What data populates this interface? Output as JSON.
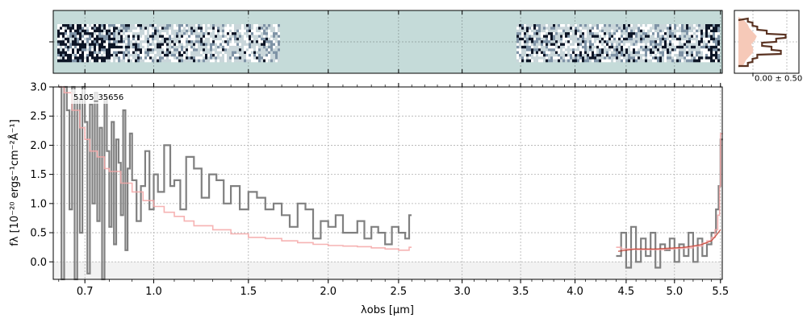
{
  "chart_data": {
    "type": "line",
    "object_label": "5105_35656",
    "xlabel": "λobs [μm]",
    "ylabel": "fλ [10⁻²⁰ ergs⁻¹cm⁻²Å⁻¹]",
    "x_scale": "reciprocal",
    "xlim": [
      0.58,
      5.52
    ],
    "ylim": [
      -0.3,
      3.0
    ],
    "x_tick_labels": [
      "0.7",
      "1.0",
      "1.5",
      "2.0",
      "2.5",
      "3.0",
      "3.5",
      "4.0",
      "4.5",
      "5.0",
      "5.5"
    ],
    "y_tick_labels": [
      "0.0",
      "0.5",
      "1.0",
      "1.5",
      "2.0",
      "2.5",
      "3.0"
    ],
    "grid": true,
    "inset_label": "0.00 ± 0.50",
    "colors": {
      "flux": "#808080",
      "error": "#f4a6a6",
      "model": "#c0392b",
      "spectrum_bg": "#c5dbd9",
      "profile": "#5a3322",
      "profile_fill": "#f6c9b8"
    },
    "series": [
      {
        "role": "flux",
        "x": [
          0.6,
          0.61,
          0.62,
          0.63,
          0.64,
          0.65,
          0.66,
          0.67,
          0.68,
          0.69,
          0.7,
          0.71,
          0.72,
          0.73,
          0.74,
          0.75,
          0.76,
          0.77,
          0.78,
          0.79,
          0.8,
          0.81,
          0.82,
          0.83,
          0.84,
          0.85,
          0.86,
          0.87,
          0.88,
          0.89,
          0.9,
          0.92,
          0.94,
          0.96,
          0.98,
          1.0,
          1.02,
          1.05,
          1.08,
          1.1,
          1.13,
          1.16,
          1.2,
          1.24,
          1.28,
          1.32,
          1.36,
          1.4,
          1.45,
          1.5,
          1.55,
          1.6,
          1.65,
          1.7,
          1.75,
          1.8,
          1.85,
          1.9,
          1.95,
          2.0,
          2.05,
          2.1,
          2.15,
          2.2,
          2.25,
          2.3,
          2.35,
          2.4,
          2.45,
          2.5,
          2.55,
          2.58
        ],
        "y": [
          3.0,
          -0.3,
          3.0,
          2.6,
          0.9,
          3.0,
          -0.3,
          2.8,
          0.5,
          3.0,
          2.4,
          -0.2,
          2.7,
          1.0,
          2.9,
          0.7,
          2.3,
          -0.3,
          2.8,
          1.9,
          0.6,
          2.4,
          0.3,
          2.1,
          1.7,
          0.8,
          2.6,
          0.2,
          1.6,
          2.2,
          1.4,
          0.7,
          1.3,
          1.9,
          0.9,
          1.5,
          1.2,
          2.0,
          1.3,
          1.4,
          0.9,
          1.8,
          1.6,
          1.1,
          1.5,
          1.4,
          1.0,
          1.3,
          0.9,
          1.2,
          1.1,
          0.9,
          1.0,
          0.8,
          0.6,
          1.0,
          0.9,
          0.4,
          0.7,
          0.6,
          0.8,
          0.5,
          0.5,
          0.7,
          0.4,
          0.6,
          0.5,
          0.3,
          0.6,
          0.5,
          0.4,
          0.8
        ]
      },
      {
        "role": "error",
        "x": [
          0.6,
          0.62,
          0.65,
          0.68,
          0.7,
          0.72,
          0.75,
          0.78,
          0.8,
          0.85,
          0.9,
          0.95,
          1.0,
          1.05,
          1.1,
          1.15,
          1.2,
          1.3,
          1.4,
          1.5,
          1.6,
          1.7,
          1.8,
          1.9,
          2.0,
          2.1,
          2.2,
          2.3,
          2.4,
          2.5,
          2.58
        ],
        "y": [
          3.0,
          2.9,
          2.6,
          2.3,
          2.1,
          1.9,
          1.8,
          1.6,
          1.55,
          1.35,
          1.2,
          1.05,
          0.95,
          0.85,
          0.78,
          0.7,
          0.62,
          0.55,
          0.48,
          0.42,
          0.4,
          0.36,
          0.33,
          0.3,
          0.28,
          0.27,
          0.26,
          0.24,
          0.22,
          0.2,
          0.25
        ]
      },
      {
        "role": "flux",
        "x": [
          4.4,
          4.45,
          4.5,
          4.55,
          4.6,
          4.65,
          4.7,
          4.75,
          4.8,
          4.85,
          4.9,
          4.95,
          5.0,
          5.05,
          5.1,
          5.15,
          5.2,
          5.25,
          5.3,
          5.35,
          5.4,
          5.45,
          5.48,
          5.5
        ],
        "y": [
          0.1,
          0.5,
          -0.1,
          0.6,
          0.0,
          0.4,
          0.1,
          0.5,
          -0.1,
          0.3,
          0.2,
          0.4,
          0.0,
          0.3,
          0.1,
          0.5,
          0.0,
          0.4,
          0.1,
          0.3,
          0.5,
          0.9,
          1.3,
          2.1
        ]
      },
      {
        "role": "error",
        "x": [
          4.4,
          4.45,
          4.5,
          4.6,
          4.7,
          4.8,
          4.9,
          5.0,
          5.1,
          5.2,
          5.3,
          5.35,
          5.4,
          5.44,
          5.47,
          5.49,
          5.5
        ],
        "y": [
          0.25,
          0.22,
          0.22,
          0.21,
          0.21,
          0.21,
          0.22,
          0.23,
          0.24,
          0.27,
          0.32,
          0.36,
          0.42,
          0.55,
          0.8,
          1.3,
          2.2
        ]
      }
    ],
    "model": {
      "x": [
        4.42,
        4.5,
        4.6,
        4.7,
        4.8,
        4.9,
        5.0,
        5.1,
        5.2,
        5.3,
        5.4,
        5.45,
        5.5
      ],
      "y": [
        0.18,
        0.2,
        0.22,
        0.22,
        0.22,
        0.23,
        0.24,
        0.25,
        0.27,
        0.3,
        0.36,
        0.45,
        0.55
      ]
    },
    "profile": {
      "x": [
        0.2,
        0.3,
        0.4,
        0.6,
        1.0,
        0.8,
        0.5,
        0.7,
        0.9,
        0.4,
        0.3,
        0.2
      ],
      "fill": [
        0.3,
        0.5,
        0.6,
        0.8,
        1.0,
        0.9,
        0.7,
        0.8,
        0.8,
        0.6,
        0.4,
        0.3
      ]
    }
  }
}
